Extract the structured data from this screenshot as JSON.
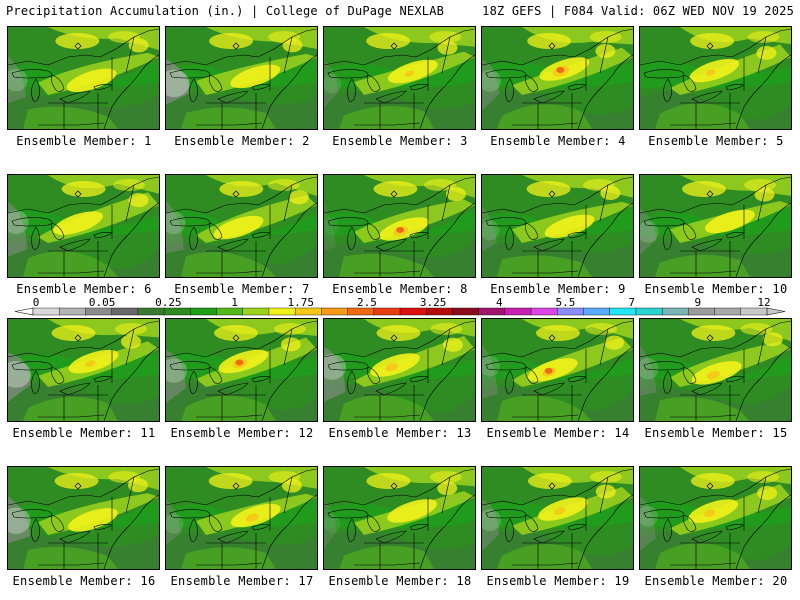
{
  "header": {
    "left": "Precipitation Accumulation (in.) | College of DuPage NEXLAB",
    "right": "18Z GEFS | F084 Valid: 06Z WED NOV 19 2025"
  },
  "legend": {
    "labels": [
      "0",
      "0.05",
      "0.25",
      "1",
      "1.75",
      "2.5",
      "3.25",
      "4",
      "5.5",
      "7",
      "9",
      "12"
    ],
    "colors": [
      "#d8d8d8",
      "#b4b4b4",
      "#8c8c8c",
      "#6a6a6a",
      "#3c7a34",
      "#2e8c22",
      "#1f9e1a",
      "#55b81a",
      "#9cd21c",
      "#f2f21a",
      "#f5c81a",
      "#f59a18",
      "#f06a14",
      "#e83c12",
      "#dd1010",
      "#b40a0a",
      "#8c0a1e",
      "#a01470",
      "#c81eb4",
      "#dc46e6",
      "#8c8cff",
      "#5aaaff",
      "#22e6f5",
      "#2cd2d2",
      "#7ab4b4",
      "#9c9c9c",
      "#a8a8a8",
      "#c8c8c8"
    ]
  },
  "members": [
    {
      "label": "Ensemble Member: 1",
      "hot": 0.45,
      "gray": 0.55
    },
    {
      "label": "Ensemble Member: 2",
      "hot": 0.4,
      "gray": 0.95
    },
    {
      "label": "Ensemble Member: 3",
      "hot": 0.55,
      "gray": 0.3
    },
    {
      "label": "Ensemble Member: 4",
      "hot": 0.95,
      "gray": 0.5
    },
    {
      "label": "Ensemble Member: 5",
      "hot": 0.55,
      "gray": 0.1
    },
    {
      "label": "Ensemble Member: 6",
      "hot": 0.4,
      "gray": 0.65
    },
    {
      "label": "Ensemble Member: 7",
      "hot": 0.45,
      "gray": 0.55
    },
    {
      "label": "Ensemble Member: 8",
      "hot": 0.85,
      "gray": 0.15
    },
    {
      "label": "Ensemble Member: 9",
      "hot": 0.45,
      "gray": 0.35
    },
    {
      "label": "Ensemble Member: 10",
      "hot": 0.3,
      "gray": 0.45
    },
    {
      "label": "Ensemble Member: 11",
      "hot": 0.6,
      "gray": 0.9
    },
    {
      "label": "Ensemble Member: 12",
      "hot": 0.85,
      "gray": 0.7
    },
    {
      "label": "Ensemble Member: 13",
      "hot": 0.75,
      "gray": 0.8
    },
    {
      "label": "Ensemble Member: 14",
      "hot": 0.8,
      "gray": 0.4
    },
    {
      "label": "Ensemble Member: 15",
      "hot": 0.75,
      "gray": 0.45
    },
    {
      "label": "Ensemble Member: 16",
      "hot": 0.45,
      "gray": 0.85
    },
    {
      "label": "Ensemble Member: 17",
      "hot": 0.75,
      "gray": 0.35
    },
    {
      "label": "Ensemble Member: 18",
      "hot": 0.45,
      "gray": 0.2
    },
    {
      "label": "Ensemble Member: 19",
      "hot": 0.65,
      "gray": 0.5
    },
    {
      "label": "Ensemble Member: 20",
      "hot": 0.65,
      "gray": 0.4
    }
  ]
}
